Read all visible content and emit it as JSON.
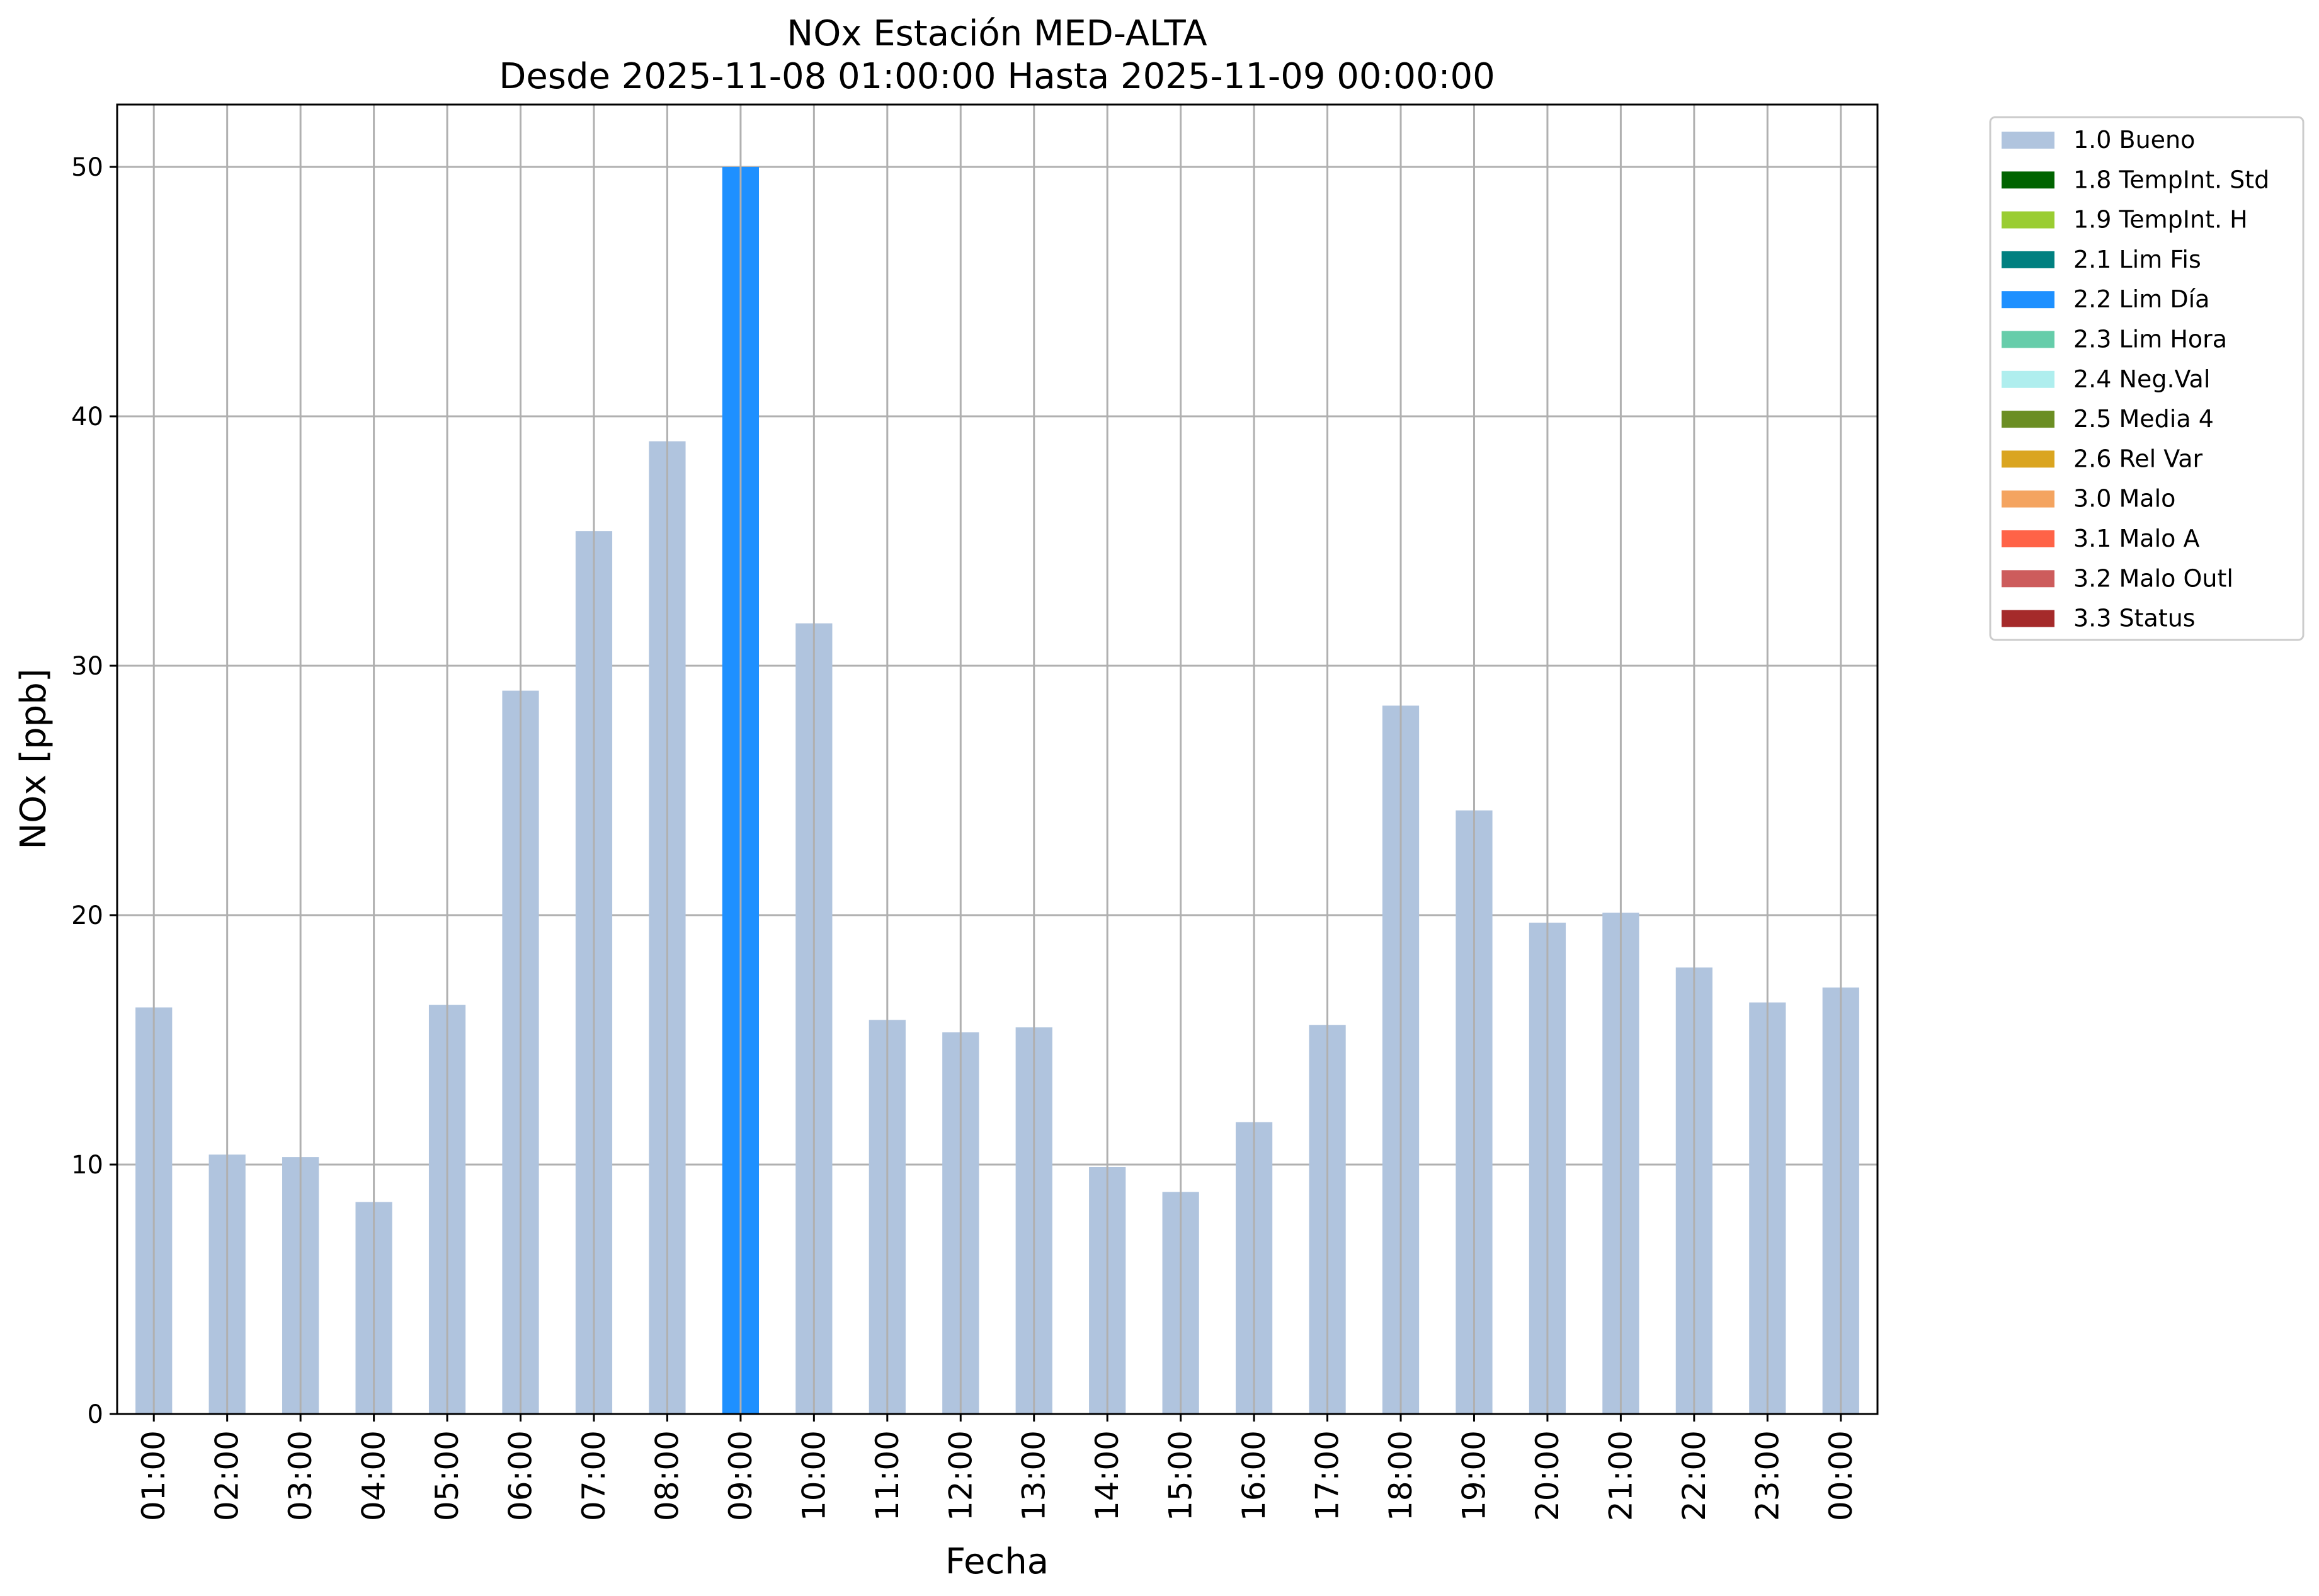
{
  "chart_data": {
    "type": "bar",
    "title": "NOx Estación MED-ALTA",
    "subtitle": "Desde 2025-11-08 01:00:00 Hasta 2025-11-09 00:00:00",
    "xlabel": "Fecha",
    "ylabel": "NOx [ppb]",
    "ylim": [
      0,
      52.5
    ],
    "yticks": [
      0,
      10,
      20,
      30,
      40,
      50
    ],
    "grid": true,
    "legend_position": "outside-top-right",
    "categories": [
      "01:00",
      "02:00",
      "03:00",
      "04:00",
      "05:00",
      "06:00",
      "07:00",
      "08:00",
      "09:00",
      "10:00",
      "11:00",
      "12:00",
      "13:00",
      "14:00",
      "15:00",
      "16:00",
      "17:00",
      "18:00",
      "19:00",
      "20:00",
      "21:00",
      "22:00",
      "23:00",
      "00:00"
    ],
    "values": [
      16.3,
      10.4,
      10.3,
      8.5,
      16.4,
      29.0,
      35.4,
      39.0,
      50.0,
      31.7,
      15.8,
      15.3,
      15.5,
      9.9,
      8.9,
      11.7,
      15.6,
      28.4,
      24.2,
      19.7,
      20.1,
      17.9,
      16.5,
      17.1
    ],
    "flags": [
      "1.0 Bueno",
      "1.0 Bueno",
      "1.0 Bueno",
      "1.0 Bueno",
      "1.0 Bueno",
      "1.0 Bueno",
      "1.0 Bueno",
      "1.0 Bueno",
      "2.2 Lim Día",
      "1.0 Bueno",
      "1.0 Bueno",
      "1.0 Bueno",
      "1.0 Bueno",
      "1.0 Bueno",
      "1.0 Bueno",
      "1.0 Bueno",
      "1.0 Bueno",
      "1.0 Bueno",
      "1.0 Bueno",
      "1.0 Bueno",
      "1.0 Bueno",
      "1.0 Bueno",
      "1.0 Bueno",
      "1.0 Bueno"
    ],
    "legend": [
      {
        "label": "1.0 Bueno",
        "color": "#b0c4de"
      },
      {
        "label": "1.8 TempInt. Std",
        "color": "#006400"
      },
      {
        "label": "1.9 TempInt. H",
        "color": "#9acd32"
      },
      {
        "label": "2.1 Lim Fis",
        "color": "#008080"
      },
      {
        "label": "2.2 Lim Día",
        "color": "#1e90ff"
      },
      {
        "label": "2.3 Lim Hora",
        "color": "#66cdaa"
      },
      {
        "label": "2.4 Neg.Val",
        "color": "#afeeee"
      },
      {
        "label": "2.5 Media 4",
        "color": "#6b8e23"
      },
      {
        "label": "2.6 Rel Var",
        "color": "#daa520"
      },
      {
        "label": "3.0 Malo",
        "color": "#f4a460"
      },
      {
        "label": "3.1 Malo A",
        "color": "#ff6347"
      },
      {
        "label": "3.2 Malo Outl",
        "color": "#cd5c5c"
      },
      {
        "label": "3.3 Status",
        "color": "#a52a2a"
      }
    ]
  }
}
